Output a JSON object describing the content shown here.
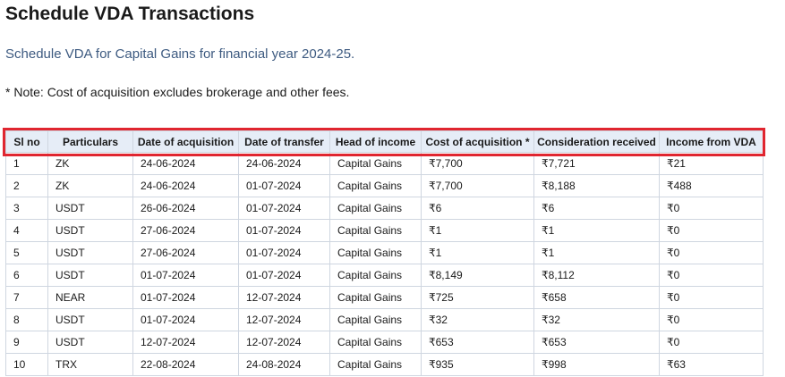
{
  "header": {
    "title": "Schedule VDA Transactions",
    "subtitle": "Schedule VDA for Capital Gains for financial year 2024-25.",
    "note": "* Note: Cost of acquisition excludes brokerage and other fees."
  },
  "table": {
    "columns": [
      "Sl no",
      "Particulars",
      "Date of acquisition",
      "Date of transfer",
      "Head of income",
      "Cost of acquisition *",
      "Consideration received",
      "Income from VDA"
    ],
    "rows": [
      [
        "1",
        "ZK",
        "24-06-2024",
        "24-06-2024",
        "Capital Gains",
        "₹7,700",
        "₹7,721",
        "₹21"
      ],
      [
        "2",
        "ZK",
        "24-06-2024",
        "01-07-2024",
        "Capital Gains",
        "₹7,700",
        "₹8,188",
        "₹488"
      ],
      [
        "3",
        "USDT",
        "26-06-2024",
        "01-07-2024",
        "Capital Gains",
        "₹6",
        "₹6",
        "₹0"
      ],
      [
        "4",
        "USDT",
        "27-06-2024",
        "01-07-2024",
        "Capital Gains",
        "₹1",
        "₹1",
        "₹0"
      ],
      [
        "5",
        "USDT",
        "27-06-2024",
        "01-07-2024",
        "Capital Gains",
        "₹1",
        "₹1",
        "₹0"
      ],
      [
        "6",
        "USDT",
        "01-07-2024",
        "01-07-2024",
        "Capital Gains",
        "₹8,149",
        "₹8,112",
        "₹0"
      ],
      [
        "7",
        "NEAR",
        "01-07-2024",
        "12-07-2024",
        "Capital Gains",
        "₹725",
        "₹658",
        "₹0"
      ],
      [
        "8",
        "USDT",
        "01-07-2024",
        "12-07-2024",
        "Capital Gains",
        "₹32",
        "₹32",
        "₹0"
      ],
      [
        "9",
        "USDT",
        "12-07-2024",
        "12-07-2024",
        "Capital Gains",
        "₹653",
        "₹653",
        "₹0"
      ],
      [
        "10",
        "TRX",
        "22-08-2024",
        "24-08-2024",
        "Capital Gains",
        "₹935",
        "₹998",
        "₹63"
      ]
    ]
  }
}
